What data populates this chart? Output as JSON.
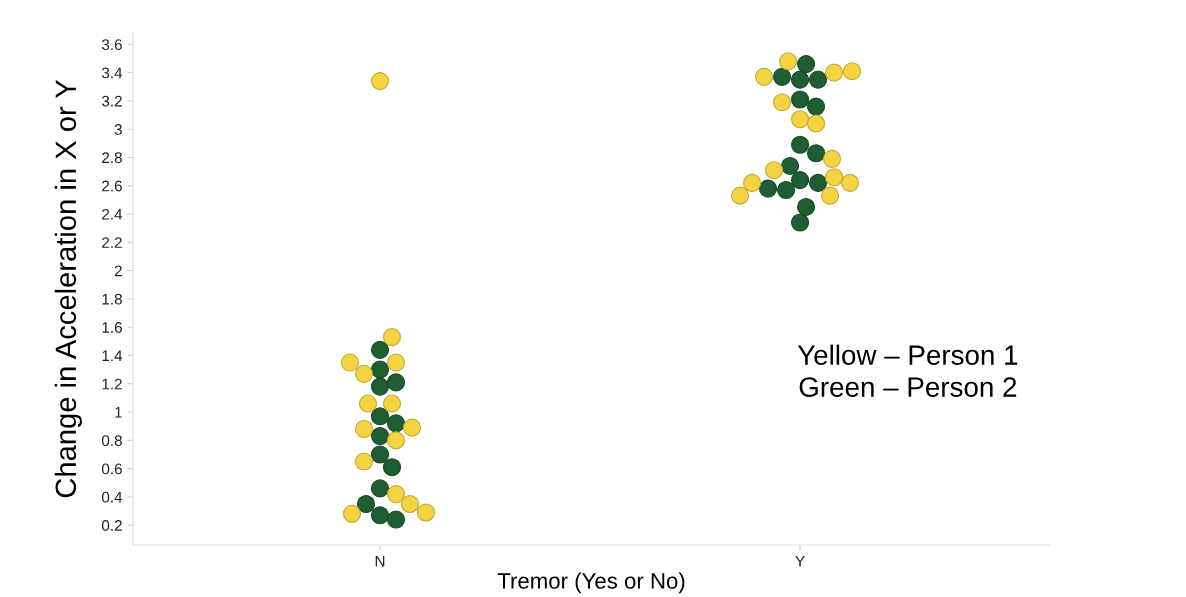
{
  "chart_data": {
    "type": "scatter",
    "xlabel": "Tremor (Yes or No)",
    "ylabel": "Change in Acceleration in X or Y",
    "categories": [
      "N",
      "Y"
    ],
    "ylim": [
      0.06,
      3.68
    ],
    "yticks": [
      0.2,
      0.4,
      0.6,
      0.8,
      1,
      1.2,
      1.4,
      1.6,
      1.8,
      2,
      2.2,
      2.4,
      2.6,
      2.8,
      3,
      3.2,
      3.4,
      3.6
    ],
    "grid": false,
    "marker": "circle",
    "annotations": [
      "Yellow – Person 1\nGreen – Person 2"
    ],
    "series": [
      {
        "color": "#1e5e32",
        "x": [
          "N",
          "N",
          "N",
          "N",
          "N",
          "N",
          "N",
          "N",
          "N",
          "N",
          "N",
          "N",
          "N",
          "Y",
          "Y",
          "Y",
          "Y",
          "Y",
          "Y",
          "Y",
          "Y",
          "Y",
          "Y",
          "Y",
          "Y",
          "Y",
          "Y",
          "Y"
        ],
        "values": [
          1.44,
          1.18,
          1.3,
          1.21,
          0.97,
          0.92,
          0.83,
          0.7,
          0.61,
          0.46,
          0.27,
          0.24,
          0.35,
          3.35,
          3.21,
          3.46,
          3.35,
          3.37,
          3.16,
          2.89,
          2.83,
          2.64,
          2.74,
          2.62,
          2.57,
          2.58,
          2.34,
          2.45
        ]
      },
      {
        "color": "#f5d442",
        "x": [
          "N",
          "N",
          "N",
          "N",
          "N",
          "N",
          "N",
          "N",
          "N",
          "N",
          "N",
          "N",
          "N",
          "N",
          "N",
          "Y",
          "Y",
          "Y",
          "Y",
          "Y",
          "Y",
          "Y",
          "Y",
          "Y",
          "Y",
          "Y",
          "Y",
          "Y",
          "Y"
        ],
        "values": [
          3.34,
          1.53,
          1.35,
          1.27,
          1.35,
          1.06,
          1.06,
          0.88,
          0.89,
          0.8,
          0.65,
          0.42,
          0.35,
          0.28,
          0.29,
          3.48,
          3.4,
          3.37,
          3.41,
          3.19,
          3.07,
          3.04,
          2.71,
          2.79,
          2.66,
          2.62,
          2.62,
          2.53,
          2.53
        ]
      }
    ]
  }
}
